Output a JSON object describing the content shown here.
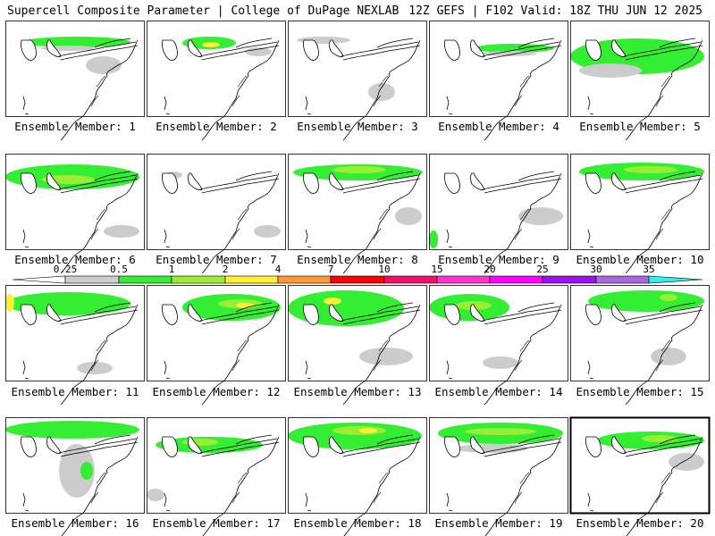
{
  "header": {
    "left_title": "Supercell Composite Parameter | College of DuPage NEXLAB",
    "right_title": "12Z GEFS | F102 Valid: 18Z THU JUN 12 2025"
  },
  "colorbar": {
    "ticks": [
      "0.25",
      "0.5",
      "1",
      "2",
      "4",
      "7",
      "10",
      "15",
      "20",
      "25",
      "30",
      "35"
    ],
    "colors": [
      "#cccccc",
      "#33ee33",
      "#99ee33",
      "#ffee33",
      "#ff9933",
      "#ff0000",
      "#ee1166",
      "#ff33cc",
      "#ff00ff",
      "#9911ee",
      "#aa66dd",
      "#33eeee"
    ]
  },
  "members": [
    {
      "label": "Ensemble Member: 1"
    },
    {
      "label": "Ensemble Member: 2"
    },
    {
      "label": "Ensemble Member: 3"
    },
    {
      "label": "Ensemble Member: 4"
    },
    {
      "label": "Ensemble Member: 5"
    },
    {
      "label": "Ensemble Member: 6"
    },
    {
      "label": "Ensemble Member: 7"
    },
    {
      "label": "Ensemble Member: 8"
    },
    {
      "label": "Ensemble Member: 9"
    },
    {
      "label": "Ensemble Member: 10"
    },
    {
      "label": "Ensemble Member: 11"
    },
    {
      "label": "Ensemble Member: 12"
    },
    {
      "label": "Ensemble Member: 13"
    },
    {
      "label": "Ensemble Member: 14"
    },
    {
      "label": "Ensemble Member: 15"
    },
    {
      "label": "Ensemble Member: 16"
    },
    {
      "label": "Ensemble Member: 17"
    },
    {
      "label": "Ensemble Member: 18"
    },
    {
      "label": "Ensemble Member: 19"
    },
    {
      "label": "Ensemble Member: 20"
    }
  ]
}
